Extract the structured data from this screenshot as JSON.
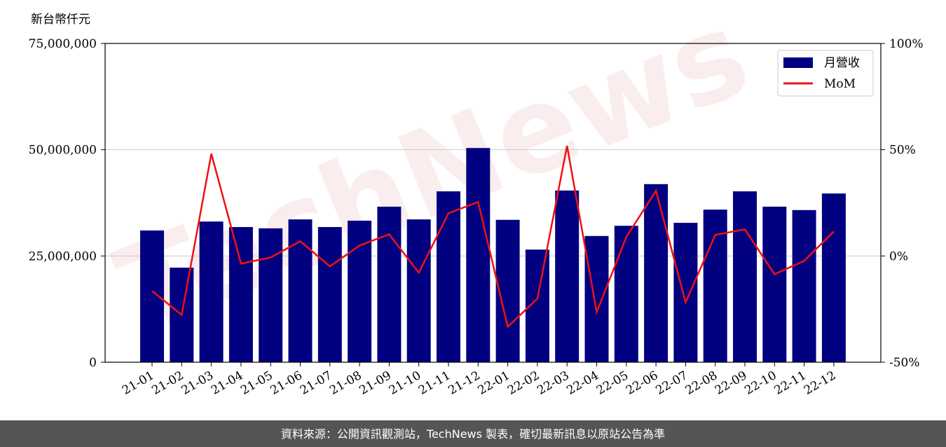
{
  "chart_data": {
    "type": "bar-line",
    "y_label": "新台幣仟元",
    "watermark": "TechNews",
    "footer": "資料來源：公開資訊觀測站，TechNews 製表，確切最新訊息以原站公告為準",
    "categories": [
      "21-01",
      "21-02",
      "21-03",
      "21-04",
      "21-05",
      "21-06",
      "21-07",
      "21-08",
      "21-09",
      "21-10",
      "21-11",
      "21-12",
      "22-01",
      "22-02",
      "22-03",
      "22-04",
      "22-05",
      "22-06",
      "22-07",
      "22-08",
      "22-09",
      "22-10",
      "22-11",
      "22-12"
    ],
    "series": [
      {
        "name": "月營收",
        "color": "#000080",
        "kind": "bar",
        "values": [
          31000000,
          22250000,
          33100000,
          31800000,
          31500000,
          33600000,
          31800000,
          33300000,
          36600000,
          33600000,
          40200000,
          50400000,
          33500000,
          26500000,
          40400000,
          29700000,
          32100000,
          41900000,
          32800000,
          35900000,
          40200000,
          36600000,
          35800000,
          39700000
        ]
      },
      {
        "name": "MoM",
        "color": "#ee1111",
        "kind": "line",
        "axis": "y2",
        "values": [
          -16.5,
          -27.7,
          48.1,
          -3.6,
          -0.7,
          6.9,
          -4.9,
          4.9,
          10.2,
          -7.9,
          20.1,
          25.4,
          -33.3,
          -20.1,
          51.8,
          -26.4,
          8.9,
          30.7,
          -21.8,
          9.9,
          12.5,
          -8.6,
          -2.3,
          11.5
        ]
      }
    ],
    "ylim": [
      0,
      75000000
    ],
    "yticks": [
      0,
      {
        "value": 25000000,
        "label": "25,000,000"
      },
      {
        "value": 50000000,
        "label": "50,000,000"
      },
      {
        "value": 75000000,
        "label": "75,000,000"
      }
    ],
    "y2lim": [
      -50,
      100
    ],
    "y2ticks": [
      {
        "value": -50,
        "label": "-50%"
      },
      {
        "value": 0,
        "label": "0%"
      },
      {
        "value": 50,
        "label": "50%"
      },
      {
        "value": 100,
        "label": "100%"
      }
    ],
    "grid": true,
    "legend": "upper right"
  }
}
